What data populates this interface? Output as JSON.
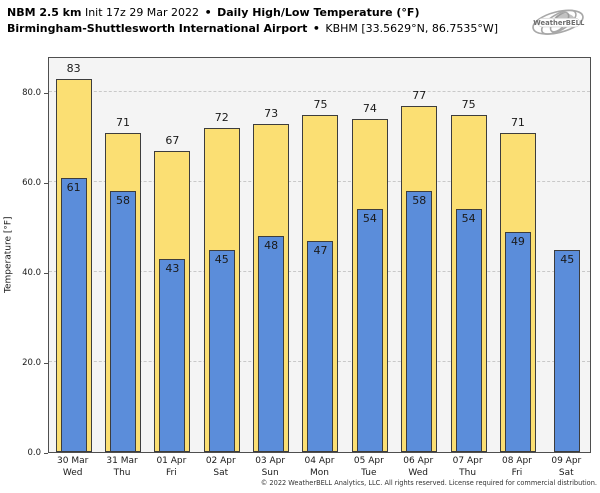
{
  "header": {
    "model": "NBM 2.5 km",
    "init": "Init 17z 29 Mar 2022",
    "separator": "•",
    "product": "Daily High/Low Temperature (°F)",
    "station": "Birmingham-Shuttlesworth International Airport",
    "station_id": "KBHM [33.5629°N, 86.7535°W]"
  },
  "logo": {
    "text": "WeatherBELL"
  },
  "footer": {
    "copyright": "© 2022 WeatherBELL Analytics, LLC. All rights reserved. License required for commercial distribution."
  },
  "chart_data": {
    "type": "bar",
    "title": "NBM 2.5 km Init 17z 29 Mar 2022 • Daily High/Low Temperature (°F)",
    "subtitle": "Birmingham-Shuttlesworth International Airport • KBHM [33.5629°N, 86.7535°W]",
    "ylabel": "Temperature [°F]",
    "ylim": [
      0,
      88
    ],
    "yticks": [
      0,
      20,
      40,
      60,
      80
    ],
    "ytick_labels": [
      "0.0",
      "20.0",
      "40.0",
      "60.0",
      "80.0"
    ],
    "grid_values": [
      20,
      40,
      60,
      80
    ],
    "grid_style": "dashed",
    "legend_position": "none",
    "categories": [
      {
        "date": "30 Mar",
        "day": "Wed"
      },
      {
        "date": "31 Mar",
        "day": "Thu"
      },
      {
        "date": "01 Apr",
        "day": "Fri"
      },
      {
        "date": "02 Apr",
        "day": "Sat"
      },
      {
        "date": "03 Apr",
        "day": "Sun"
      },
      {
        "date": "04 Apr",
        "day": "Mon"
      },
      {
        "date": "05 Apr",
        "day": "Tue"
      },
      {
        "date": "06 Apr",
        "day": "Wed"
      },
      {
        "date": "07 Apr",
        "day": "Thu"
      },
      {
        "date": "08 Apr",
        "day": "Fri"
      },
      {
        "date": "09 Apr",
        "day": "Sat"
      }
    ],
    "series": [
      {
        "name": "Daily High",
        "color": "#fbdf73",
        "values": [
          83,
          71,
          67,
          72,
          73,
          75,
          74,
          77,
          75,
          71,
          null
        ]
      },
      {
        "name": "Daily Low",
        "color": "#5b8dda",
        "values": [
          61,
          58,
          43,
          45,
          48,
          47,
          54,
          58,
          54,
          49,
          45
        ]
      }
    ],
    "bar_border_color": "#3d3d3d",
    "plot_background": "#f4f4f4",
    "grid_color": "#c9c9c9"
  }
}
